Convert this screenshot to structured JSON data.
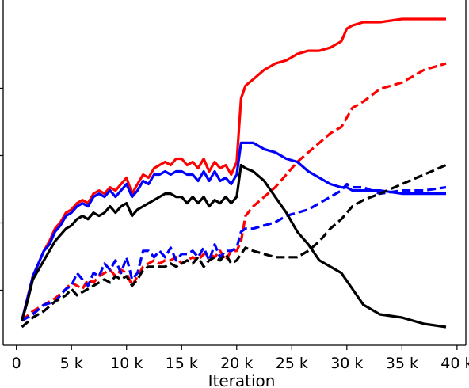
{
  "chart_data": {
    "type": "line",
    "title": "",
    "xlabel": "Iteration",
    "ylabel": "",
    "xlim": [
      -1200,
      40800
    ],
    "ylim": [
      0,
      1
    ],
    "grid": false,
    "legend": "none",
    "x_ticks": [
      0,
      5000,
      10000,
      15000,
      20000,
      25000,
      30000,
      35000,
      40000
    ],
    "x_tick_labels": [
      "0",
      "5 k",
      "10 k",
      "15 k",
      "20 k",
      "25 k",
      "30 k",
      "35 k",
      "40 k"
    ],
    "y_ticks": [
      0.116,
      0.328,
      0.54,
      0.752
    ],
    "series": [
      {
        "color": "#ff0000",
        "dash": "solid",
        "x": [
          500,
          1000,
          1500,
          2000,
          2500,
          3000,
          3500,
          4000,
          4500,
          5000,
          5500,
          6000,
          6500,
          7000,
          7500,
          8000,
          8500,
          9000,
          9500,
          10000,
          10500,
          11000,
          11500,
          12000,
          12500,
          13000,
          13500,
          14000,
          14500,
          15000,
          15500,
          16000,
          16500,
          17000,
          17500,
          18000,
          18500,
          19000,
          19500,
          20000,
          20400,
          20800,
          21500,
          22500,
          23500,
          24500,
          25500,
          26500,
          27500,
          28500,
          29500,
          30000,
          30500,
          31500,
          33000,
          35000,
          37000,
          39000
        ],
        "y": [
          0.02,
          0.09,
          0.16,
          0.2,
          0.24,
          0.27,
          0.31,
          0.33,
          0.36,
          0.37,
          0.39,
          0.4,
          0.39,
          0.42,
          0.43,
          0.42,
          0.44,
          0.43,
          0.45,
          0.47,
          0.42,
          0.45,
          0.48,
          0.47,
          0.5,
          0.51,
          0.52,
          0.51,
          0.53,
          0.53,
          0.51,
          0.52,
          0.5,
          0.53,
          0.49,
          0.52,
          0.5,
          0.51,
          0.48,
          0.52,
          0.72,
          0.76,
          0.78,
          0.81,
          0.83,
          0.84,
          0.86,
          0.87,
          0.87,
          0.88,
          0.9,
          0.94,
          0.95,
          0.96,
          0.96,
          0.97,
          0.97,
          0.97
        ]
      },
      {
        "color": "#ff0000",
        "dash": "dashed",
        "x": [
          500,
          1500,
          2500,
          3500,
          4500,
          5000,
          5500,
          6000,
          6500,
          7000,
          7500,
          8000,
          8500,
          9000,
          9500,
          10000,
          10500,
          11000,
          11500,
          12000,
          12500,
          13000,
          13500,
          14000,
          14500,
          15000,
          15500,
          16000,
          16500,
          17000,
          17500,
          18000,
          18500,
          19000,
          19500,
          20000,
          20400,
          20800,
          21500,
          22500,
          23500,
          24500,
          25500,
          26500,
          27500,
          28500,
          29500,
          30500,
          31500,
          33000,
          35000,
          37000,
          39000
        ],
        "y": [
          0.02,
          0.05,
          0.07,
          0.09,
          0.12,
          0.14,
          0.13,
          0.12,
          0.15,
          0.14,
          0.16,
          0.17,
          0.18,
          0.16,
          0.18,
          0.17,
          0.13,
          0.16,
          0.19,
          0.2,
          0.21,
          0.2,
          0.21,
          0.21,
          0.22,
          0.2,
          0.21,
          0.22,
          0.21,
          0.23,
          0.23,
          0.22,
          0.24,
          0.21,
          0.24,
          0.24,
          0.27,
          0.35,
          0.38,
          0.41,
          0.44,
          0.48,
          0.52,
          0.55,
          0.58,
          0.61,
          0.63,
          0.69,
          0.71,
          0.75,
          0.77,
          0.81,
          0.83
        ]
      },
      {
        "color": "#0000ff",
        "dash": "solid",
        "x": [
          500,
          1000,
          1500,
          2000,
          2500,
          3000,
          3500,
          4000,
          4500,
          5000,
          5500,
          6000,
          6500,
          7000,
          7500,
          8000,
          8500,
          9000,
          9500,
          10000,
          10500,
          11000,
          11500,
          12000,
          12500,
          13000,
          13500,
          14000,
          14500,
          15000,
          15500,
          16000,
          16500,
          17000,
          17500,
          18000,
          18500,
          19000,
          19500,
          20000,
          20400,
          20800,
          21500,
          22500,
          23500,
          24500,
          25500,
          26500,
          27500,
          28500,
          29500,
          30000,
          30500,
          31500,
          33000,
          35000,
          37000,
          39000
        ],
        "y": [
          0.02,
          0.09,
          0.16,
          0.2,
          0.24,
          0.26,
          0.3,
          0.32,
          0.35,
          0.36,
          0.38,
          0.39,
          0.38,
          0.41,
          0.42,
          0.41,
          0.43,
          0.41,
          0.43,
          0.45,
          0.41,
          0.43,
          0.46,
          0.45,
          0.48,
          0.48,
          0.49,
          0.48,
          0.49,
          0.49,
          0.48,
          0.48,
          0.46,
          0.49,
          0.46,
          0.49,
          0.46,
          0.47,
          0.45,
          0.48,
          0.58,
          0.58,
          0.58,
          0.56,
          0.55,
          0.53,
          0.52,
          0.49,
          0.47,
          0.45,
          0.44,
          0.44,
          0.43,
          0.43,
          0.43,
          0.42,
          0.42,
          0.42
        ]
      },
      {
        "color": "#0000ff",
        "dash": "dashed",
        "x": [
          500,
          1500,
          2500,
          3500,
          4500,
          5000,
          5500,
          6000,
          6500,
          7000,
          7500,
          8000,
          8500,
          9000,
          9500,
          10000,
          10500,
          11000,
          11500,
          12000,
          12500,
          13000,
          13500,
          14000,
          14500,
          15000,
          15500,
          16000,
          16500,
          17000,
          17500,
          18000,
          18500,
          19000,
          19500,
          20000,
          20400,
          20800,
          21500,
          22500,
          23500,
          24500,
          25500,
          26500,
          27500,
          28500,
          29500,
          30000,
          30500,
          31500,
          33000,
          35000,
          37000,
          39000
        ],
        "y": [
          0.02,
          0.04,
          0.07,
          0.08,
          0.12,
          0.13,
          0.17,
          0.15,
          0.13,
          0.17,
          0.16,
          0.2,
          0.18,
          0.21,
          0.17,
          0.22,
          0.15,
          0.17,
          0.24,
          0.24,
          0.22,
          0.24,
          0.22,
          0.25,
          0.21,
          0.23,
          0.23,
          0.24,
          0.22,
          0.25,
          0.21,
          0.26,
          0.22,
          0.24,
          0.24,
          0.25,
          0.3,
          0.31,
          0.31,
          0.32,
          0.33,
          0.35,
          0.36,
          0.37,
          0.39,
          0.41,
          0.43,
          0.45,
          0.44,
          0.44,
          0.42,
          0.43,
          0.43,
          0.44
        ]
      },
      {
        "color": "#000000",
        "dash": "solid",
        "x": [
          500,
          1000,
          1500,
          2000,
          2500,
          3000,
          3500,
          4000,
          4500,
          5000,
          5500,
          6000,
          6500,
          7000,
          7500,
          8000,
          8500,
          9000,
          9500,
          10000,
          10500,
          11000,
          11500,
          12000,
          12500,
          13000,
          13500,
          14000,
          14500,
          15000,
          15500,
          16000,
          16500,
          17000,
          17500,
          18000,
          18500,
          19000,
          19500,
          20000,
          20400,
          20800,
          21500,
          22500,
          23500,
          24500,
          25500,
          26500,
          27500,
          28500,
          29500,
          30500,
          31500,
          33000,
          35000,
          37000,
          39000
        ],
        "y": [
          0.02,
          0.08,
          0.15,
          0.18,
          0.21,
          0.24,
          0.27,
          0.29,
          0.31,
          0.32,
          0.34,
          0.35,
          0.34,
          0.36,
          0.35,
          0.36,
          0.38,
          0.36,
          0.38,
          0.39,
          0.35,
          0.37,
          0.38,
          0.39,
          0.4,
          0.41,
          0.42,
          0.42,
          0.41,
          0.41,
          0.39,
          0.41,
          0.39,
          0.41,
          0.38,
          0.4,
          0.39,
          0.41,
          0.39,
          0.41,
          0.51,
          0.5,
          0.49,
          0.46,
          0.41,
          0.36,
          0.3,
          0.26,
          0.21,
          0.19,
          0.17,
          0.12,
          0.07,
          0.04,
          0.03,
          0.01,
          0.0
        ]
      },
      {
        "color": "#000000",
        "dash": "dashed",
        "x": [
          500,
          1500,
          2500,
          3500,
          4500,
          5000,
          5500,
          6000,
          6500,
          7000,
          7500,
          8000,
          8500,
          9000,
          9500,
          10000,
          10500,
          11000,
          11500,
          12000,
          12500,
          13000,
          13500,
          14000,
          14500,
          15000,
          15500,
          16000,
          16500,
          17000,
          17500,
          18000,
          18500,
          19000,
          19500,
          20000,
          20400,
          20800,
          21500,
          22500,
          23500,
          24500,
          25500,
          26500,
          27500,
          28500,
          29500,
          30500,
          31500,
          33000,
          35000,
          37000,
          39000
        ],
        "y": [
          0.0,
          0.03,
          0.05,
          0.08,
          0.1,
          0.12,
          0.1,
          0.11,
          0.12,
          0.13,
          0.14,
          0.15,
          0.14,
          0.16,
          0.15,
          0.16,
          0.13,
          0.15,
          0.18,
          0.19,
          0.19,
          0.19,
          0.19,
          0.2,
          0.19,
          0.2,
          0.21,
          0.2,
          0.22,
          0.19,
          0.21,
          0.22,
          0.21,
          0.23,
          0.2,
          0.21,
          0.23,
          0.25,
          0.24,
          0.23,
          0.22,
          0.22,
          0.22,
          0.24,
          0.27,
          0.31,
          0.34,
          0.38,
          0.4,
          0.42,
          0.45,
          0.48,
          0.51
        ]
      }
    ]
  }
}
